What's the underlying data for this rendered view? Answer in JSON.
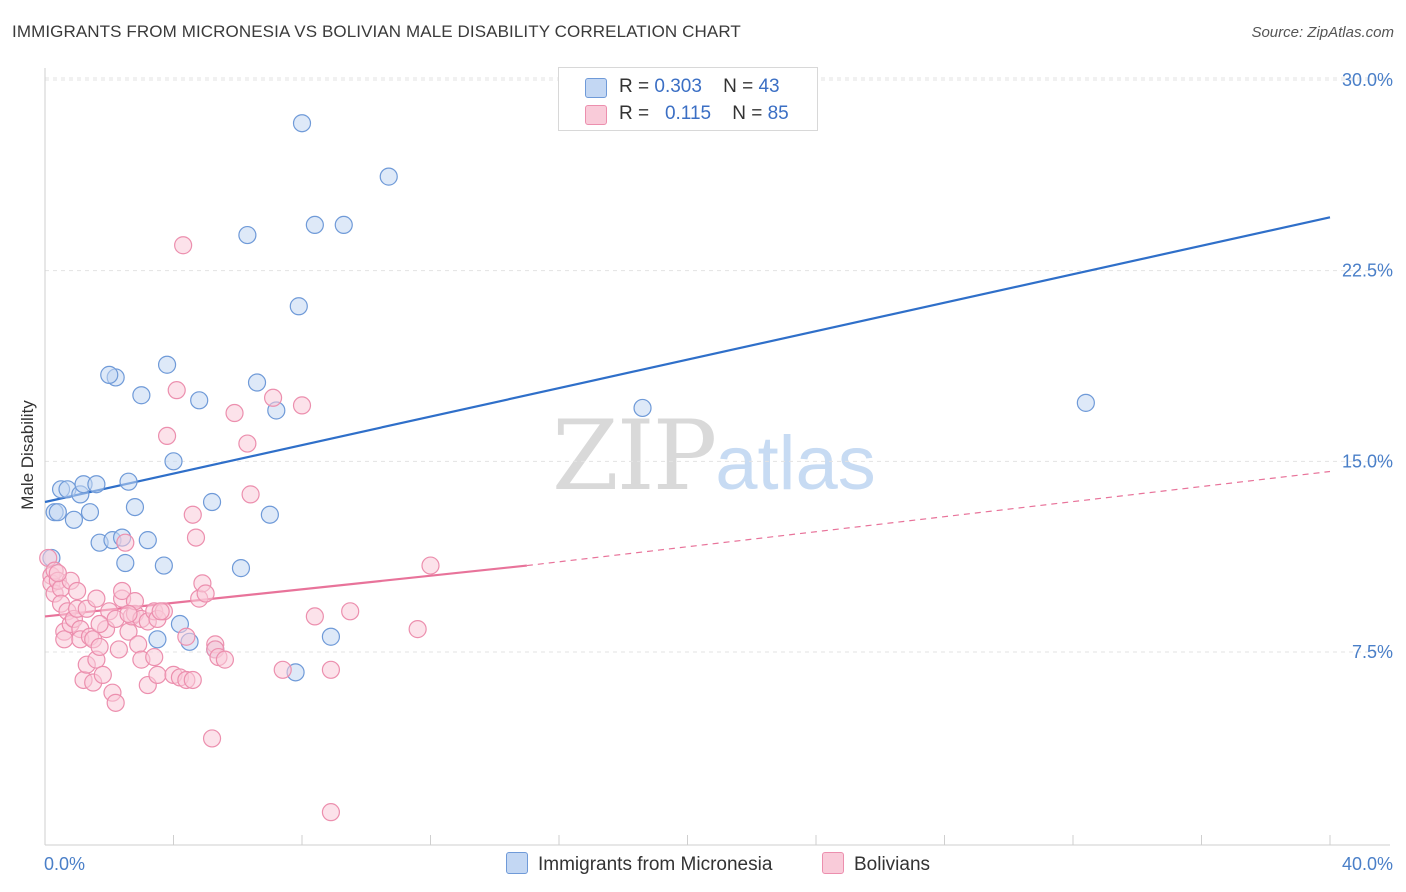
{
  "title": "IMMIGRANTS FROM MICRONESIA VS BOLIVIAN MALE DISABILITY CORRELATION CHART",
  "source": "Source: ZipAtlas.com",
  "watermark": {
    "zip": "ZIP",
    "atlas": "atlas"
  },
  "legend_top": {
    "rows": [
      {
        "r_label": "R =",
        "r_value": "0.303",
        "n_label": "N =",
        "n_value": "43"
      },
      {
        "r_label": "R =",
        "r_value": "0.115",
        "n_label": "N =",
        "n_value": "85"
      }
    ]
  },
  "legend_bottom": {
    "micronesia": "Immigrants from Micronesia",
    "bolivians": "Bolivians"
  },
  "colors": {
    "blue_fill": "#c3d7f3",
    "blue_stroke": "#6f9ad8",
    "blue_line": "#2f6fc9",
    "pink_fill": "#f9cbd9",
    "pink_stroke": "#ec8fae",
    "pink_line": "#e8739a",
    "grid": "#e3e3e3",
    "axis_text": "#4a7fc8"
  },
  "chart_data": {
    "type": "scatter",
    "title": "IMMIGRANTS FROM MICRONESIA VS BOLIVIAN MALE DISABILITY CORRELATION CHART",
    "xlabel": "",
    "ylabel": "Male Disability",
    "xlim": [
      0,
      40
    ],
    "ylim": [
      0,
      31
    ],
    "x_tick_labels": [
      "0.0%",
      "40.0%"
    ],
    "y_ticks": [
      7.5,
      15.0,
      22.5,
      30.0
    ],
    "y_tick_labels": [
      "7.5%",
      "15.0%",
      "22.5%",
      "30.0%"
    ],
    "grid": true,
    "legend_position": "top-center",
    "series": [
      {
        "name": "Immigrants from Micronesia",
        "color": "blue",
        "points": [
          [
            0.2,
            11.2
          ],
          [
            0.3,
            13.0
          ],
          [
            0.4,
            13.0
          ],
          [
            0.5,
            13.9
          ],
          [
            0.7,
            13.9
          ],
          [
            0.9,
            12.7
          ],
          [
            1.1,
            13.7
          ],
          [
            1.2,
            14.1
          ],
          [
            1.4,
            13.0
          ],
          [
            1.6,
            14.1
          ],
          [
            1.7,
            11.8
          ],
          [
            2.1,
            11.9
          ],
          [
            2.2,
            18.3
          ],
          [
            2.0,
            18.4
          ],
          [
            2.4,
            12.0
          ],
          [
            2.5,
            11.0
          ],
          [
            2.6,
            14.2
          ],
          [
            2.8,
            13.2
          ],
          [
            3.0,
            17.6
          ],
          [
            3.2,
            11.9
          ],
          [
            3.5,
            8.0
          ],
          [
            3.7,
            10.9
          ],
          [
            3.8,
            18.8
          ],
          [
            4.0,
            15.0
          ],
          [
            4.2,
            8.6
          ],
          [
            4.5,
            7.9
          ],
          [
            4.8,
            17.4
          ],
          [
            5.2,
            13.4
          ],
          [
            5.3,
            7.6
          ],
          [
            6.1,
            10.8
          ],
          [
            6.3,
            23.9
          ],
          [
            6.6,
            18.1
          ],
          [
            7.0,
            12.9
          ],
          [
            7.2,
            17.0
          ],
          [
            7.8,
            6.7
          ],
          [
            7.9,
            21.1
          ],
          [
            8.0,
            28.3
          ],
          [
            8.4,
            24.3
          ],
          [
            8.9,
            8.1
          ],
          [
            9.3,
            24.3
          ],
          [
            10.7,
            26.2
          ],
          [
            18.6,
            17.1
          ],
          [
            32.4,
            17.3
          ]
        ],
        "trend": {
          "x": [
            0,
            40
          ],
          "y": [
            13.4,
            24.6
          ],
          "style": "solid"
        }
      },
      {
        "name": "Bolivians",
        "color": "pink",
        "points": [
          [
            0.1,
            11.2
          ],
          [
            0.2,
            10.5
          ],
          [
            0.2,
            10.2
          ],
          [
            0.3,
            10.7
          ],
          [
            0.3,
            9.8
          ],
          [
            0.4,
            10.3
          ],
          [
            0.5,
            10.0
          ],
          [
            0.5,
            9.4
          ],
          [
            0.6,
            8.3
          ],
          [
            0.6,
            8.0
          ],
          [
            0.7,
            9.1
          ],
          [
            0.8,
            10.3
          ],
          [
            0.8,
            8.6
          ],
          [
            0.9,
            8.8
          ],
          [
            1.0,
            9.9
          ],
          [
            1.0,
            9.2
          ],
          [
            1.1,
            8.4
          ],
          [
            1.1,
            8.0
          ],
          [
            1.2,
            6.4
          ],
          [
            1.3,
            7.0
          ],
          [
            1.3,
            9.2
          ],
          [
            1.4,
            8.1
          ],
          [
            1.5,
            8.0
          ],
          [
            1.5,
            6.3
          ],
          [
            1.6,
            9.6
          ],
          [
            1.6,
            7.2
          ],
          [
            1.7,
            7.7
          ],
          [
            1.8,
            6.6
          ],
          [
            1.9,
            8.4
          ],
          [
            2.0,
            9.1
          ],
          [
            2.1,
            5.9
          ],
          [
            2.2,
            8.8
          ],
          [
            2.2,
            5.5
          ],
          [
            2.3,
            7.6
          ],
          [
            2.4,
            9.6
          ],
          [
            2.4,
            9.9
          ],
          [
            2.5,
            11.8
          ],
          [
            2.6,
            8.3
          ],
          [
            2.7,
            8.9
          ],
          [
            2.8,
            9.0
          ],
          [
            2.8,
            9.5
          ],
          [
            2.9,
            7.8
          ],
          [
            3.0,
            8.8
          ],
          [
            3.0,
            7.2
          ],
          [
            3.2,
            8.7
          ],
          [
            3.2,
            6.2
          ],
          [
            3.4,
            7.3
          ],
          [
            3.4,
            9.1
          ],
          [
            3.5,
            8.8
          ],
          [
            3.5,
            6.6
          ],
          [
            3.7,
            9.1
          ],
          [
            3.8,
            16.0
          ],
          [
            4.0,
            6.6
          ],
          [
            4.1,
            17.8
          ],
          [
            4.2,
            6.5
          ],
          [
            4.3,
            23.5
          ],
          [
            4.4,
            6.4
          ],
          [
            4.4,
            8.1
          ],
          [
            4.6,
            12.9
          ],
          [
            4.6,
            6.4
          ],
          [
            4.7,
            12.0
          ],
          [
            4.8,
            9.6
          ],
          [
            4.9,
            10.2
          ],
          [
            5.0,
            9.8
          ],
          [
            5.2,
            4.1
          ],
          [
            5.3,
            7.8
          ],
          [
            5.3,
            7.6
          ],
          [
            5.4,
            7.3
          ],
          [
            5.6,
            7.2
          ],
          [
            5.9,
            16.9
          ],
          [
            6.3,
            15.7
          ],
          [
            6.4,
            13.7
          ],
          [
            7.1,
            17.5
          ],
          [
            7.4,
            6.8
          ],
          [
            8.0,
            17.2
          ],
          [
            8.4,
            8.9
          ],
          [
            8.9,
            6.8
          ],
          [
            8.9,
            1.2
          ],
          [
            9.5,
            9.1
          ],
          [
            11.6,
            8.4
          ],
          [
            12.0,
            10.9
          ],
          [
            1.7,
            8.6
          ],
          [
            2.6,
            9.0
          ],
          [
            0.4,
            10.6
          ],
          [
            3.6,
            9.1
          ]
        ],
        "trend": {
          "x": [
            0,
            15
          ],
          "y": [
            8.9,
            10.9
          ],
          "style": "solid"
        },
        "trend_extension": {
          "x": [
            15,
            40
          ],
          "y": [
            10.9,
            14.6
          ],
          "style": "dashed"
        }
      }
    ]
  }
}
